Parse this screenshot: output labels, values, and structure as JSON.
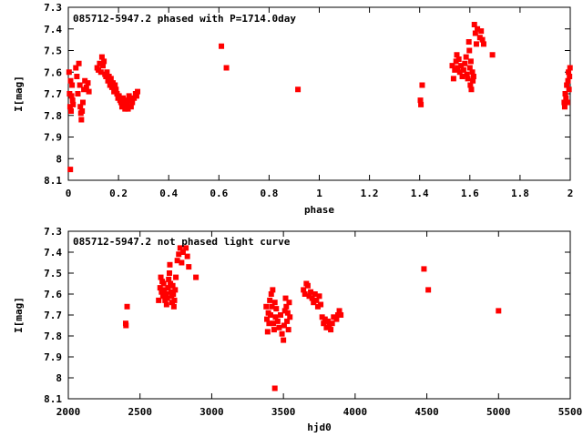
{
  "chart_data": [
    {
      "type": "scatter",
      "title": "085712-5947.2 phased with P=1714.0day",
      "xlabel": "phase",
      "ylabel": "I[mag]",
      "xlim": [
        0,
        2
      ],
      "ylim": [
        8.1,
        7.3
      ],
      "y_inverted": true,
      "xticks": [
        "0",
        "0.2",
        "0.4",
        "0.6",
        "0.8",
        "1",
        "1.2",
        "1.4",
        "1.6",
        "1.8",
        "2"
      ],
      "yticks": [
        "7.3",
        "7.4",
        "7.5",
        "7.6",
        "7.7",
        "7.8",
        "7.9",
        "8",
        "8.1"
      ],
      "marker_color": "#ff0000",
      "grid": false,
      "points": [
        [
          0.003,
          7.6
        ],
        [
          0.005,
          7.7
        ],
        [
          0.007,
          7.76
        ],
        [
          0.009,
          7.64
        ],
        [
          0.011,
          7.78
        ],
        [
          0.013,
          7.71
        ],
        [
          0.015,
          7.66
        ],
        [
          0.017,
          7.73
        ],
        [
          0.019,
          7.75
        ],
        [
          0.008,
          8.05
        ],
        [
          0.03,
          7.58
        ],
        [
          0.034,
          7.62
        ],
        [
          0.038,
          7.7
        ],
        [
          0.042,
          7.56
        ],
        [
          0.046,
          7.66
        ],
        [
          0.048,
          7.76
        ],
        [
          0.05,
          7.79
        ],
        [
          0.052,
          7.82
        ],
        [
          0.055,
          7.78
        ],
        [
          0.058,
          7.74
        ],
        [
          0.062,
          7.68
        ],
        [
          0.066,
          7.64
        ],
        [
          0.072,
          7.67
        ],
        [
          0.078,
          7.65
        ],
        [
          0.082,
          7.69
        ],
        [
          0.115,
          7.58
        ],
        [
          0.12,
          7.59
        ],
        [
          0.125,
          7.56
        ],
        [
          0.13,
          7.6
        ],
        [
          0.134,
          7.53
        ],
        [
          0.138,
          7.57
        ],
        [
          0.142,
          7.55
        ],
        [
          0.146,
          7.61
        ],
        [
          0.15,
          7.62
        ],
        [
          0.154,
          7.6
        ],
        [
          0.158,
          7.64
        ],
        [
          0.162,
          7.62
        ],
        [
          0.166,
          7.66
        ],
        [
          0.17,
          7.63
        ],
        [
          0.174,
          7.67
        ],
        [
          0.178,
          7.65
        ],
        [
          0.182,
          7.69
        ],
        [
          0.186,
          7.66
        ],
        [
          0.19,
          7.68
        ],
        [
          0.194,
          7.7
        ],
        [
          0.198,
          7.72
        ],
        [
          0.202,
          7.71
        ],
        [
          0.206,
          7.73
        ],
        [
          0.21,
          7.74
        ],
        [
          0.214,
          7.76
        ],
        [
          0.218,
          7.72
        ],
        [
          0.222,
          7.75
        ],
        [
          0.226,
          7.77
        ],
        [
          0.23,
          7.73
        ],
        [
          0.234,
          7.75
        ],
        [
          0.238,
          7.77
        ],
        [
          0.242,
          7.71
        ],
        [
          0.246,
          7.73
        ],
        [
          0.25,
          7.76
        ],
        [
          0.255,
          7.74
        ],
        [
          0.262,
          7.72
        ],
        [
          0.268,
          7.7
        ],
        [
          0.272,
          7.71
        ],
        [
          0.276,
          7.69
        ],
        [
          0.61,
          7.48
        ],
        [
          0.63,
          7.58
        ],
        [
          0.915,
          7.68
        ],
        [
          1.403,
          7.73
        ],
        [
          1.405,
          7.75
        ],
        [
          1.41,
          7.66
        ],
        [
          1.53,
          7.57
        ],
        [
          1.535,
          7.63
        ],
        [
          1.54,
          7.59
        ],
        [
          1.545,
          7.55
        ],
        [
          1.548,
          7.52
        ],
        [
          1.552,
          7.58
        ],
        [
          1.556,
          7.54
        ],
        [
          1.56,
          7.6
        ],
        [
          1.565,
          7.57
        ],
        [
          1.57,
          7.62
        ],
        [
          1.575,
          7.59
        ],
        [
          1.58,
          7.56
        ],
        [
          1.585,
          7.53
        ],
        [
          1.588,
          7.61
        ],
        [
          1.592,
          7.63
        ],
        [
          1.596,
          7.46
        ],
        [
          1.598,
          7.5
        ],
        [
          1.6,
          7.58
        ],
        [
          1.602,
          7.66
        ],
        [
          1.604,
          7.55
        ],
        [
          1.606,
          7.68
        ],
        [
          1.61,
          7.6
        ],
        [
          1.612,
          7.64
        ],
        [
          1.615,
          7.62
        ],
        [
          1.618,
          7.38
        ],
        [
          1.622,
          7.42
        ],
        [
          1.626,
          7.47
        ],
        [
          1.63,
          7.4
        ],
        [
          1.64,
          7.44
        ],
        [
          1.645,
          7.41
        ],
        [
          1.65,
          7.45
        ],
        [
          1.655,
          7.47
        ],
        [
          1.69,
          7.52
        ],
        [
          1.976,
          7.74
        ],
        [
          1.978,
          7.76
        ],
        [
          1.98,
          7.7
        ],
        [
          1.983,
          7.72
        ],
        [
          1.986,
          7.66
        ],
        [
          1.989,
          7.74
        ],
        [
          1.991,
          7.64
        ],
        [
          1.993,
          7.6
        ],
        [
          1.995,
          7.68
        ],
        [
          1.997,
          7.62
        ],
        [
          1.999,
          7.58
        ]
      ]
    },
    {
      "type": "scatter",
      "title": "085712-5947.2 not phased light curve",
      "xlabel": "hjd0",
      "ylabel": "I[mag]",
      "xlim": [
        2000,
        5500
      ],
      "ylim": [
        8.1,
        7.3
      ],
      "y_inverted": true,
      "xticks": [
        "2000",
        "2500",
        "3000",
        "3500",
        "4000",
        "4500",
        "5000",
        "5500"
      ],
      "yticks": [
        "7.3",
        "7.4",
        "7.5",
        "7.6",
        "7.7",
        "7.8",
        "7.9",
        "8",
        "8.1"
      ],
      "marker_color": "#ff0000",
      "grid": false,
      "points": [
        [
          2400,
          7.74
        ],
        [
          2402,
          7.75
        ],
        [
          2410,
          7.66
        ],
        [
          2630,
          7.63
        ],
        [
          2640,
          7.57
        ],
        [
          2645,
          7.52
        ],
        [
          2650,
          7.59
        ],
        [
          2655,
          7.54
        ],
        [
          2660,
          7.61
        ],
        [
          2665,
          7.55
        ],
        [
          2670,
          7.58
        ],
        [
          2675,
          7.63
        ],
        [
          2680,
          7.6
        ],
        [
          2685,
          7.65
        ],
        [
          2690,
          7.62
        ],
        [
          2695,
          7.57
        ],
        [
          2700,
          7.53
        ],
        [
          2705,
          7.5
        ],
        [
          2708,
          7.46
        ],
        [
          2712,
          7.55
        ],
        [
          2716,
          7.59
        ],
        [
          2720,
          7.61
        ],
        [
          2724,
          7.64
        ],
        [
          2728,
          7.56
        ],
        [
          2732,
          7.6
        ],
        [
          2736,
          7.66
        ],
        [
          2740,
          7.63
        ],
        [
          2745,
          7.58
        ],
        [
          2750,
          7.52
        ],
        [
          2760,
          7.44
        ],
        [
          2770,
          7.41
        ],
        [
          2780,
          7.38
        ],
        [
          2790,
          7.45
        ],
        [
          2800,
          7.4
        ],
        [
          2820,
          7.38
        ],
        [
          2830,
          7.42
        ],
        [
          2840,
          7.47
        ],
        [
          2890,
          7.52
        ],
        [
          3380,
          7.66
        ],
        [
          3385,
          7.72
        ],
        [
          3390,
          7.78
        ],
        [
          3395,
          7.69
        ],
        [
          3400,
          7.74
        ],
        [
          3405,
          7.63
        ],
        [
          3410,
          7.7
        ],
        [
          3415,
          7.6
        ],
        [
          3420,
          7.66
        ],
        [
          3425,
          7.58
        ],
        [
          3430,
          7.74
        ],
        [
          3435,
          7.77
        ],
        [
          3440,
          7.64
        ],
        [
          3445,
          7.71
        ],
        [
          3450,
          7.67
        ],
        [
          3460,
          7.73
        ],
        [
          3470,
          7.76
        ],
        [
          3480,
          7.7
        ],
        [
          3490,
          7.79
        ],
        [
          3500,
          7.82
        ],
        [
          3505,
          7.75
        ],
        [
          3510,
          7.68
        ],
        [
          3515,
          7.62
        ],
        [
          3520,
          7.66
        ],
        [
          3525,
          7.73
        ],
        [
          3530,
          7.69
        ],
        [
          3535,
          7.77
        ],
        [
          3540,
          7.64
        ],
        [
          3545,
          7.71
        ],
        [
          3440,
          8.05
        ],
        [
          3640,
          7.58
        ],
        [
          3650,
          7.6
        ],
        [
          3660,
          7.55
        ],
        [
          3670,
          7.56
        ],
        [
          3680,
          7.61
        ],
        [
          3690,
          7.59
        ],
        [
          3700,
          7.62
        ],
        [
          3710,
          7.64
        ],
        [
          3720,
          7.6
        ],
        [
          3730,
          7.63
        ],
        [
          3740,
          7.66
        ],
        [
          3750,
          7.61
        ],
        [
          3760,
          7.65
        ],
        [
          3770,
          7.71
        ],
        [
          3780,
          7.74
        ],
        [
          3790,
          7.72
        ],
        [
          3800,
          7.76
        ],
        [
          3810,
          7.73
        ],
        [
          3820,
          7.75
        ],
        [
          3830,
          7.77
        ],
        [
          3840,
          7.74
        ],
        [
          3850,
          7.71
        ],
        [
          3870,
          7.72
        ],
        [
          3880,
          7.7
        ],
        [
          3890,
          7.68
        ],
        [
          3900,
          7.7
        ],
        [
          4480,
          7.48
        ],
        [
          4510,
          7.58
        ],
        [
          5000,
          7.68
        ]
      ]
    }
  ]
}
